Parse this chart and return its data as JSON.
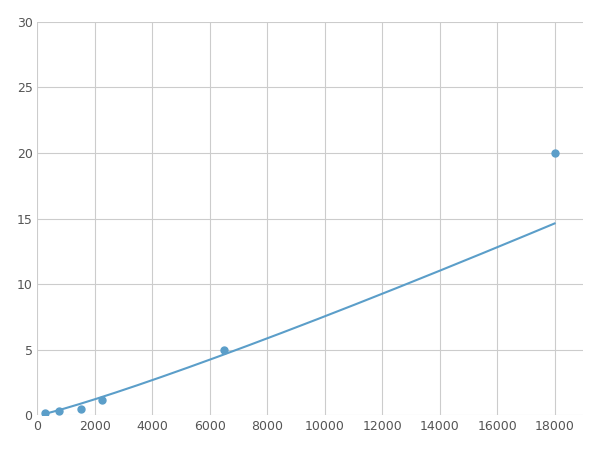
{
  "x": [
    250,
    750,
    1500,
    2250,
    6500,
    18000
  ],
  "y": [
    0.2,
    0.35,
    0.5,
    1.2,
    5.0,
    20.0
  ],
  "line_color": "#5b9ec9",
  "marker_color": "#5b9ec9",
  "marker_size": 5,
  "xlim": [
    0,
    19000
  ],
  "ylim": [
    0,
    30
  ],
  "xticks": [
    0,
    2000,
    4000,
    6000,
    8000,
    10000,
    12000,
    14000,
    16000,
    18000
  ],
  "yticks": [
    0,
    5,
    10,
    15,
    20,
    25,
    30
  ],
  "grid_color": "#cccccc",
  "background_color": "#ffffff",
  "line_width": 1.5
}
